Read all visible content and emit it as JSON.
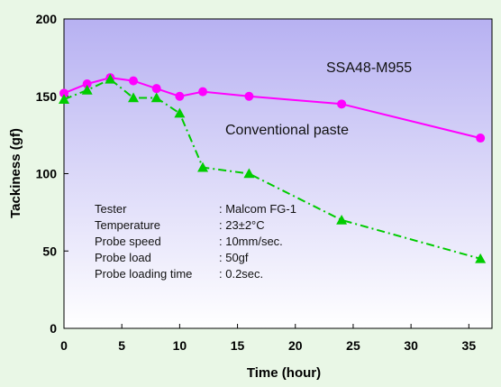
{
  "chart_data": {
    "type": "line",
    "xlabel": "Time (hour)",
    "ylabel": "Tackiness (gf)",
    "xlim": [
      0,
      37
    ],
    "ylim": [
      0,
      200
    ],
    "xticks": [
      "0",
      "5",
      "10",
      "15",
      "20",
      "25",
      "30",
      "35"
    ],
    "yticks": [
      "0",
      "50",
      "100",
      "150",
      "200"
    ],
    "grid": false,
    "background_gradient": [
      "#b7b1f2",
      "#ffffff"
    ],
    "series": [
      {
        "name": "SSA48-M955",
        "color": "#ff00ff",
        "marker": "circle",
        "line_style": "solid",
        "x": [
          0,
          2,
          4,
          6,
          8,
          10,
          12,
          16,
          24,
          36
        ],
        "y": [
          152,
          158,
          162,
          160,
          155,
          150,
          153,
          150,
          145,
          123
        ]
      },
      {
        "name": "Conventional paste",
        "color": "#00cc00",
        "marker": "triangle",
        "line_style": "dash-dot",
        "x": [
          0,
          2,
          4,
          6,
          8,
          10,
          12,
          16,
          24,
          36
        ],
        "y": [
          148,
          154,
          161,
          149,
          149,
          139,
          104,
          100,
          70,
          45
        ]
      }
    ],
    "conditions": [
      {
        "label": "Tester",
        "value": ": Malcom FG-1"
      },
      {
        "label": "Temperature",
        "value": ": 23±2°C"
      },
      {
        "label": "Probe speed",
        "value": ": 10mm/sec."
      },
      {
        "label": "Probe load",
        "value": ": 50gf"
      },
      {
        "label": "Probe loading time",
        "value": ": 0.2sec."
      }
    ]
  }
}
